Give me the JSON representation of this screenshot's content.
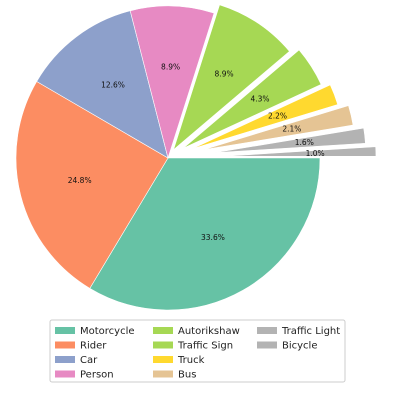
{
  "chart_data": {
    "type": "pie",
    "title": "",
    "categories": [
      "Motorcycle",
      "Rider",
      "Car",
      "Person",
      "Autorikshaw",
      "Traffic Sign",
      "Truck",
      "Bus",
      "Traffic Light",
      "Bicycle"
    ],
    "values": [
      33.6,
      24.8,
      12.6,
      8.9,
      8.9,
      4.3,
      2.2,
      2.1,
      1.6,
      1.0
    ],
    "labels": [
      "33.6%",
      "24.8%",
      "12.6%",
      "8.9%",
      "8.9%",
      "4.3%",
      "2.2%",
      "2.1%",
      "1.6%",
      "1.0%"
    ],
    "exploded": [
      false,
      false,
      false,
      false,
      true,
      true,
      true,
      true,
      true,
      true
    ],
    "colors": [
      "#66c2a5",
      "#fc8d62",
      "#8da0cb",
      "#e78ac3",
      "#a6d854",
      "#a6d854",
      "#ffd92f",
      "#e5c494",
      "#b3b3b3",
      "#b3b3b3"
    ],
    "legend": {
      "position": "bottom",
      "columns": 3,
      "items": [
        "Motorcycle",
        "Rider",
        "Car",
        "Person",
        "Autorikshaw",
        "Traffic Sign",
        "Truck",
        "Bus",
        "Traffic Light",
        "Bicycle"
      ]
    },
    "start_angle_deg": 0,
    "direction": "clockwise"
  }
}
